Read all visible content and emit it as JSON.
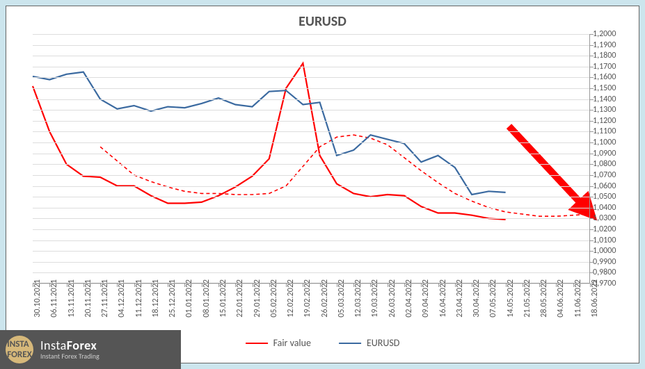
{
  "chart": {
    "type": "line",
    "title": "EURUSD",
    "title_fontsize": 20,
    "background_color": "#ffffff",
    "page_background": "#cce5ed",
    "grid_color": "#dddddd",
    "axis_color": "#999999",
    "text_color": "#555555",
    "label_fontsize": 12,
    "y_axis": {
      "min": 0.97,
      "max": 1.2,
      "tick_step": 0.01,
      "ticks": [
        "1,2000",
        "1,1900",
        "1,1800",
        "1,1700",
        "1,1600",
        "1,1500",
        "1,1400",
        "1,1300",
        "1,1200",
        "1,1100",
        "1,1000",
        "1,0900",
        "1,0800",
        "1,0700",
        "1,0600",
        "1,0500",
        "1,0400",
        "1,0300",
        "1,0200",
        "1,0100",
        "1,0000",
        "0,9900",
        "0,9800",
        "0,9700"
      ],
      "position": "right"
    },
    "x_axis": {
      "labels": [
        "30.10.2021",
        "06.11.2021",
        "13.11.2021",
        "20.11.2021",
        "27.11.2021",
        "04.12.2021",
        "11.12.2021",
        "18.12.2021",
        "25.12.2021",
        "01.01.2022",
        "08.01.2022",
        "15.01.2022",
        "22.01.2022",
        "29.01.2022",
        "05.02.2022",
        "12.02.2022",
        "19.02.2022",
        "26.02.2022",
        "05.03.2022",
        "12.03.2022",
        "19.03.2022",
        "26.03.2022",
        "02.04.2022",
        "09.04.2022",
        "16.04.2022",
        "23.04.2022",
        "30.04.2022",
        "07.05.2022",
        "14.05.2022",
        "21.05.2022",
        "28.05.2022",
        "04.06.2022",
        "11.06.2022",
        "18.06.2022"
      ],
      "rotation": -90
    },
    "series": [
      {
        "name": "Fair value",
        "color": "#ff0000",
        "line_width": 2.2,
        "style": "solid",
        "data": [
          1.152,
          1.11,
          1.08,
          1.069,
          1.068,
          1.06,
          1.06,
          1.051,
          1.044,
          1.044,
          1.045,
          1.051,
          1.059,
          1.069,
          1.085,
          1.15,
          1.173,
          1.088,
          1.062,
          1.053,
          1.05,
          1.052,
          1.051,
          1.041,
          1.035,
          1.035,
          1.033,
          1.03,
          1.029
        ]
      },
      {
        "name": "Fair value MA",
        "legend_hidden": true,
        "color": "#ff0000",
        "line_width": 1.6,
        "style": "dashed",
        "dash_pattern": "5,4",
        "x_start_index": 4,
        "data": [
          1.096,
          1.083,
          1.07,
          1.064,
          1.059,
          1.055,
          1.053,
          1.053,
          1.052,
          1.052,
          1.053,
          1.06,
          1.078,
          1.096,
          1.105,
          1.107,
          1.104,
          1.098,
          1.086,
          1.074,
          1.063,
          1.053,
          1.046,
          1.04,
          1.036,
          1.034,
          1.032,
          1.032,
          1.033,
          1.034
        ]
      },
      {
        "name": "EURUSD",
        "color": "#3b6aa0",
        "line_width": 2.2,
        "style": "solid",
        "data": [
          1.161,
          1.158,
          1.163,
          1.165,
          1.14,
          1.131,
          1.134,
          1.129,
          1.133,
          1.132,
          1.136,
          1.141,
          1.135,
          1.133,
          1.147,
          1.148,
          1.135,
          1.137,
          1.088,
          1.093,
          1.107,
          1.103,
          1.099,
          1.082,
          1.088,
          1.077,
          1.052,
          1.055,
          1.054
        ]
      }
    ],
    "legend": {
      "position": "bottom",
      "items": [
        {
          "label": "Fair value",
          "color": "#ff0000",
          "style": "solid"
        },
        {
          "label": "EURUSD",
          "color": "#3b6aa0",
          "style": "solid"
        }
      ]
    },
    "arrow": {
      "color": "#ff0000",
      "stroke_width": 10,
      "from_index": 28.2,
      "to_index": 33,
      "from_y": 1.115,
      "to_y": 1.035
    }
  },
  "watermark": {
    "brand_prefix": "Insta",
    "brand_suffix": "Forex",
    "tagline": "Instant Forex Trading",
    "badge_top": "INSTA",
    "badge_bottom": "FOREX"
  }
}
